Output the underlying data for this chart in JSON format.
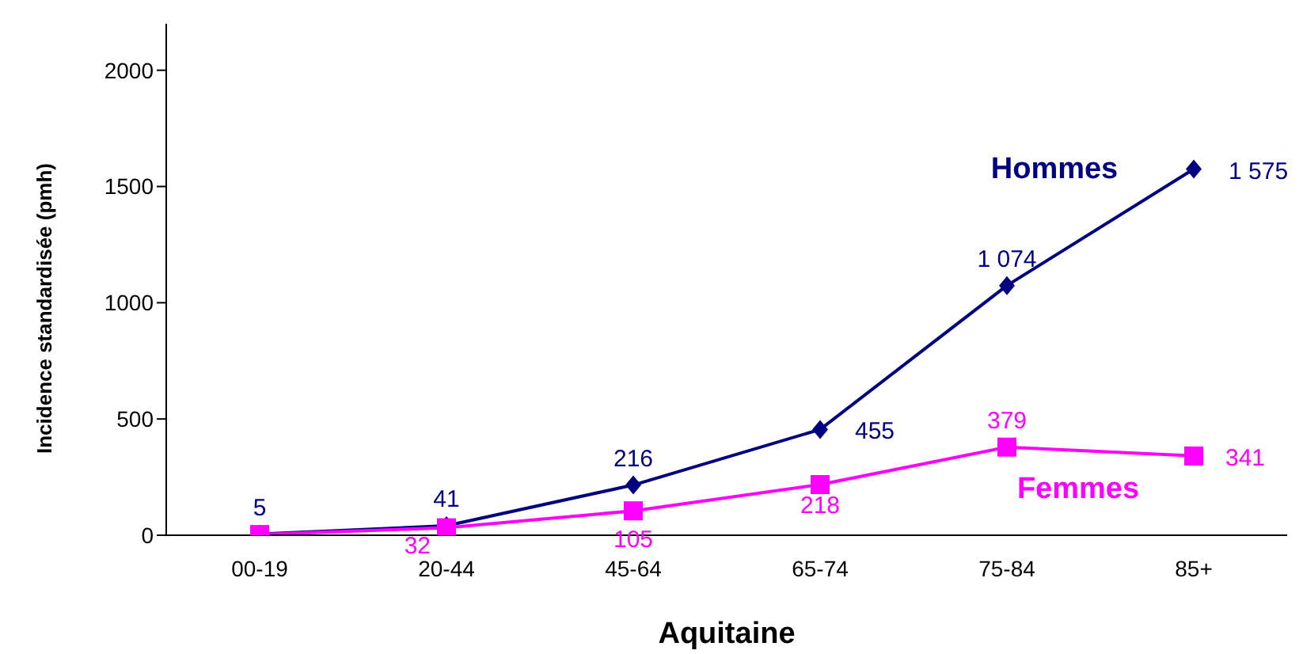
{
  "chart_data": {
    "type": "line",
    "xlabel": "Aquitaine",
    "ylabel": "Incidence  standardisée (pmh)",
    "categories": [
      "00-19",
      "20-44",
      "45-64",
      "65-74",
      "75-84",
      "85+"
    ],
    "series": [
      {
        "name": "Hommes",
        "color": "#000080",
        "marker": "diamond",
        "values": [
          5,
          41,
          216,
          455,
          1074,
          1575
        ],
        "value_labels": [
          "5",
          "41",
          "216",
          "455",
          "1 074",
          "1 575"
        ]
      },
      {
        "name": "Femmes",
        "color": "#ff00ff",
        "marker": "square",
        "values": [
          3,
          32,
          105,
          218,
          379,
          341
        ],
        "value_labels": [
          null,
          "32",
          "105",
          "218",
          "379",
          "341"
        ]
      }
    ],
    "ylim": [
      0,
      2200
    ],
    "yticks": [
      0,
      500,
      1000,
      1500,
      2000
    ],
    "grid": false,
    "legend": false
  }
}
